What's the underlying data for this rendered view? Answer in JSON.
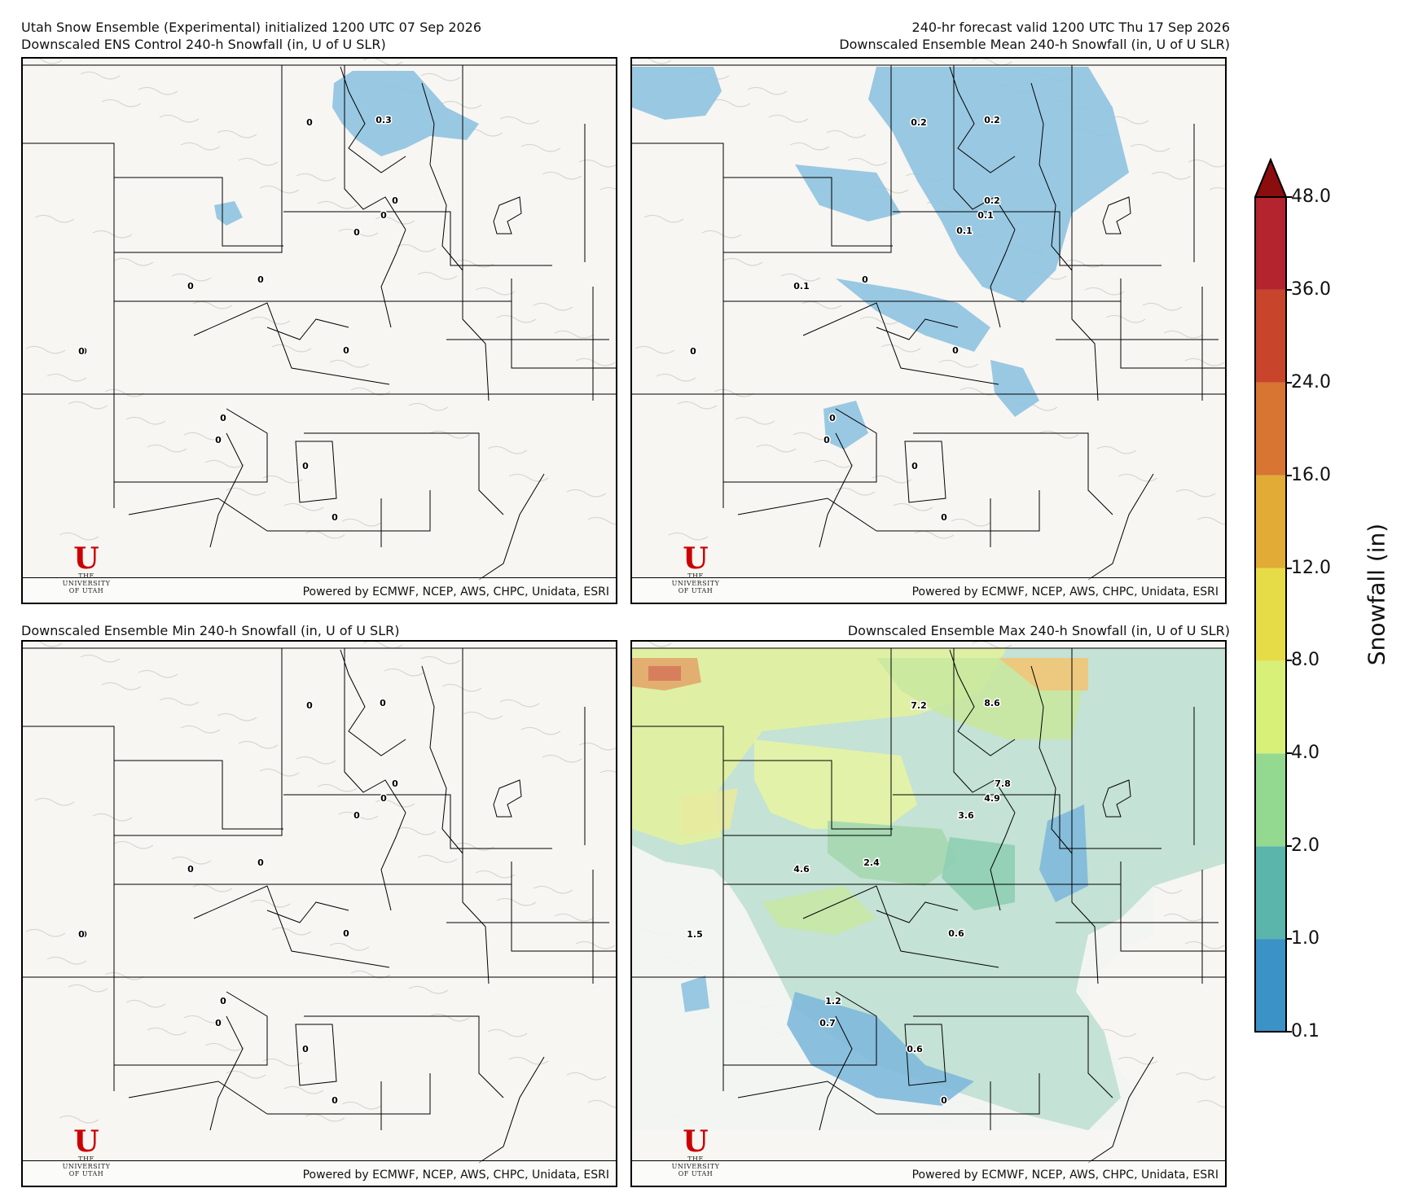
{
  "header": {
    "top_left_line1": "Utah Snow Ensemble (Experimental) initialized 1200 UTC 07 Sep 2026",
    "top_left_line2": "Downscaled ENS Control 240-h Snowfall (in, U of U SLR)",
    "top_right_line1": "240-hr forecast valid 1200 UTC Thu 17 Sep 2026",
    "top_right_line2": "Downscaled Ensemble Mean 240-h Snowfall (in, U of U SLR)",
    "bottom_left_title": "Downscaled Ensemble Min 240-h Snowfall (in, U of U SLR)",
    "bottom_right_title": "Downscaled Ensemble Max 240-h Snowfall (in, U of U SLR)"
  },
  "credit": "Powered by ECMWF, NCEP, AWS, CHPC, Unidata, ESRI",
  "logo": {
    "mark": "U",
    "line1": "THE",
    "line2": "UNIVERSITY",
    "line3": "OF UTAH"
  },
  "colorbar": {
    "label": "Snowfall (in)",
    "ticks": [
      "0.1",
      "1.0",
      "2.0",
      "4.0",
      "8.0",
      "12.0",
      "16.0",
      "24.0",
      "36.0",
      "48.0"
    ],
    "colors": [
      "#3a92c7",
      "#5bb5ab",
      "#93d990",
      "#d8f078",
      "#e6dc48",
      "#e1ab35",
      "#d87532",
      "#c8452c",
      "#b3242e"
    ],
    "extend_color": "#8b0d0d"
  },
  "panels": [
    {
      "id": "control",
      "labels": [
        "0",
        "0.3",
        "0",
        "0",
        "0",
        "0",
        "0",
        "0",
        "0",
        "0",
        "0",
        "0",
        "0",
        "0"
      ]
    },
    {
      "id": "mean",
      "labels": [
        "0.2",
        "0.2",
        "0.2",
        "0.1",
        "0.1",
        "0",
        "0.1",
        "0",
        "0",
        "0",
        "0",
        "0",
        "0"
      ]
    },
    {
      "id": "min",
      "labels": [
        "0",
        "0",
        "0",
        "0",
        "0",
        "0",
        "0",
        "0",
        "0",
        "0",
        "0",
        "0",
        "0",
        "0"
      ]
    },
    {
      "id": "max",
      "labels": [
        "7.2",
        "8.6",
        "7.8",
        "4.9",
        "3.6",
        "2.4",
        "4.6",
        "1.5",
        "0.6",
        "1.2",
        "0.7",
        "0.6",
        "0"
      ]
    }
  ]
}
